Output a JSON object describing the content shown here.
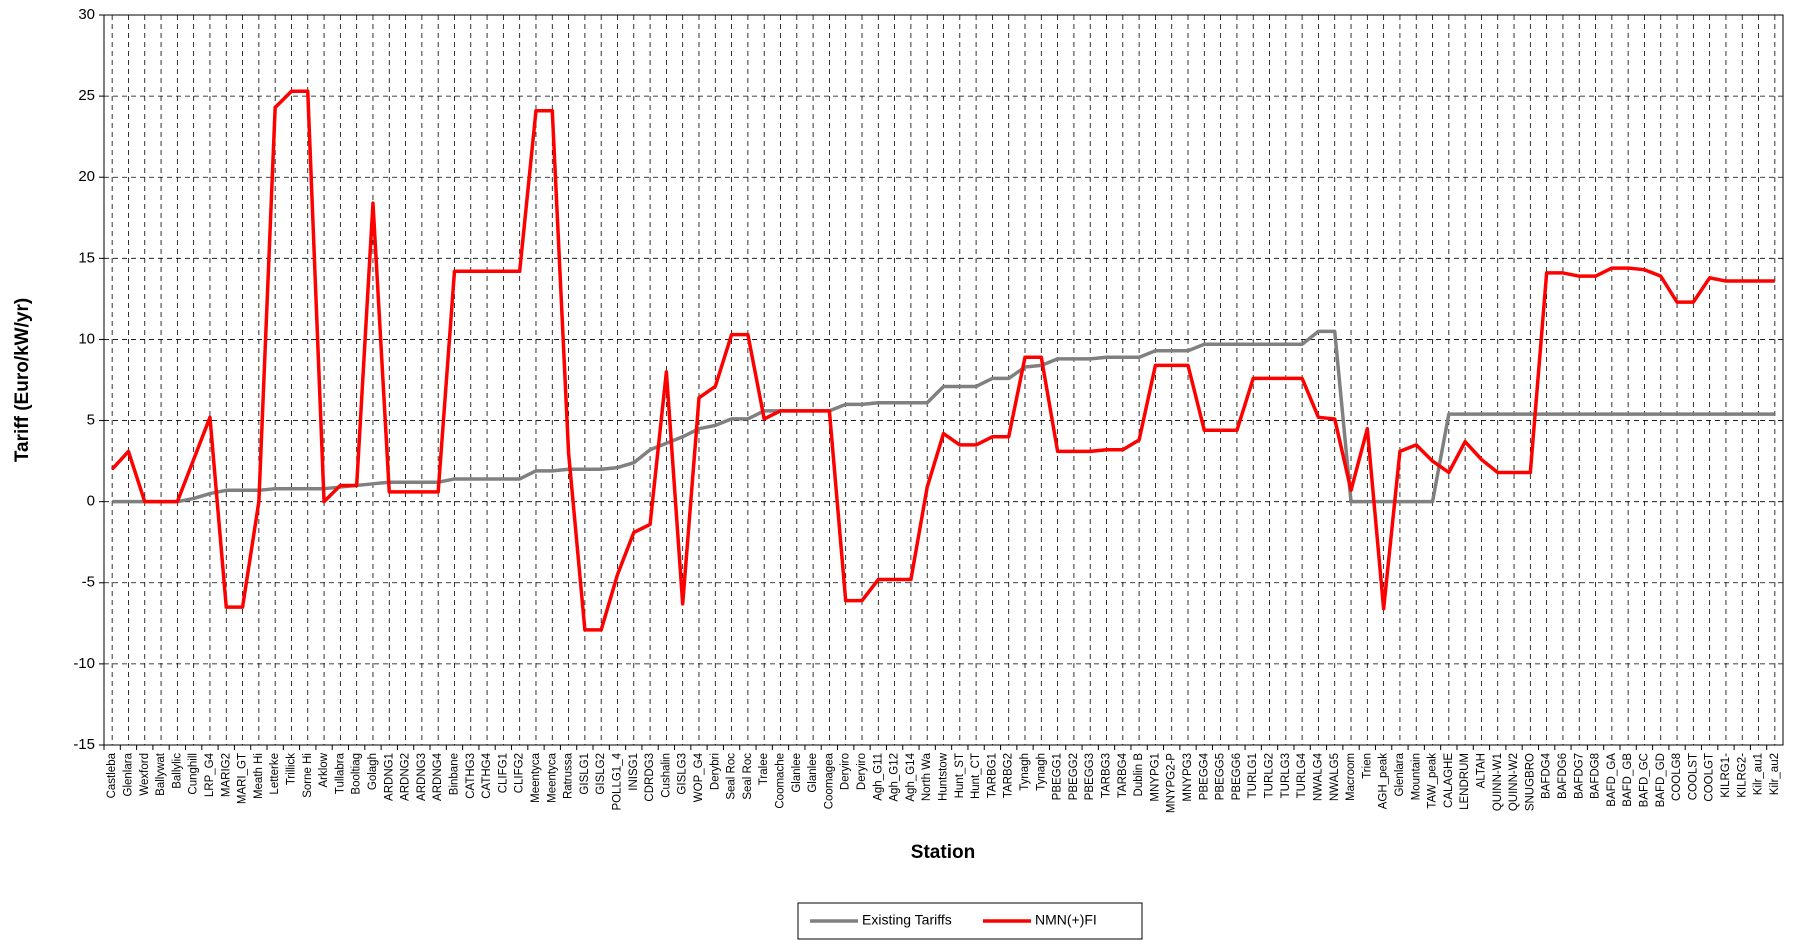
{
  "chart_data": {
    "type": "line",
    "x_label": "Station",
    "y_label": "Tariff (Euro/kW/yr)",
    "ylim": [
      -15,
      30
    ],
    "yticks": [
      -15,
      -10,
      -5,
      0,
      5,
      10,
      15,
      20,
      25,
      30
    ],
    "grid": true,
    "legend": "bottom",
    "categories": [
      "Castleba",
      "Glenlara",
      "Wexford",
      "Ballywat",
      "Ballylic",
      "Cunghill",
      "LRP_G4",
      "MARIG2",
      "MARI_GT",
      "Meath Hi",
      "Letterke",
      "Trillick",
      "Sorne Hi",
      "Arklow",
      "Tullabra",
      "Booltiag",
      "Golagh",
      "ARDNG1",
      "ARDNG2",
      "ARDNG3",
      "ARDNG4",
      "Binbane",
      "CATHG3",
      "CATHG4",
      "CLIFG1",
      "CLIFG2",
      "Meentyca",
      "Meentyca",
      "Ratrussa",
      "GISLG1",
      "GISLG2",
      "POLLG1_4",
      "INISG1",
      "CDRDG3",
      "Cushalin",
      "GISLG3",
      "WOP_G4",
      "Derybri",
      "Seal Roc",
      "Seal Roc",
      "Tralee",
      "Coomache",
      "Glanlee",
      "Glanlee",
      "Coomagea",
      "Deryiro",
      "Deryiro",
      "Agh_G11",
      "Agh_G12",
      "Agh_G14",
      "North Wa",
      "Huntstow",
      "Hunt_ST",
      "Hunt_CT",
      "TARBG1",
      "TARBG2",
      "Tynagh",
      "Tynagh",
      "PBEGG1",
      "PBEGG2",
      "PBEGG3",
      "TARBG3",
      "TARBG4",
      "Dublin B",
      "MNYPG1",
      "MNYPG2-P",
      "MNYPG3",
      "PBEGG4",
      "PBEGG5",
      "PBEGG6",
      "TURLG1",
      "TURLG2",
      "TURLG3",
      "TURLG4",
      "NWALG4",
      "NWALG5",
      "Macroom",
      "Trien",
      "AGH_peak",
      "Glenlara",
      "Mountain",
      "TAW_peak",
      "CALAGHE",
      "LENDRUM",
      "ALTAH",
      "QUINN-W1",
      "QUINN-W2",
      "SNUGBRO",
      "BAFDG4",
      "BAFDG6",
      "BAFDG7",
      "BAFDG8",
      "BAFD_GA",
      "BAFD_GB",
      "BAFD_GC",
      "BAFD_GD",
      "COOLG8",
      "COOLST",
      "COOLGT",
      "KILRG1-",
      "KILRG2-",
      "Kilr_au1",
      "Kilr_au2"
    ],
    "series": [
      {
        "name": "Existing Tariffs",
        "color": "#808080",
        "values": [
          0,
          0,
          0,
          0,
          0,
          0.2,
          0.5,
          0.7,
          0.7,
          0.7,
          0.8,
          0.8,
          0.8,
          0.8,
          0.9,
          1.0,
          1.1,
          1.2,
          1.2,
          1.2,
          1.2,
          1.4,
          1.4,
          1.4,
          1.4,
          1.4,
          1.9,
          1.9,
          2.0,
          2.0,
          2.0,
          2.1,
          2.4,
          3.2,
          3.6,
          4.0,
          4.5,
          4.7,
          5.1,
          5.1,
          5.6,
          5.6,
          5.6,
          5.6,
          5.6,
          6.0,
          6.0,
          6.1,
          6.1,
          6.1,
          6.1,
          7.1,
          7.1,
          7.1,
          7.6,
          7.6,
          8.3,
          8.4,
          8.8,
          8.8,
          8.8,
          8.9,
          8.9,
          8.9,
          9.3,
          9.3,
          9.3,
          9.7,
          9.7,
          9.7,
          9.7,
          9.7,
          9.7,
          9.7,
          10.5,
          10.5,
          0,
          0,
          0,
          0,
          0,
          0,
          5.4,
          5.4,
          5.4,
          5.4,
          5.4,
          5.4,
          5.4,
          5.4,
          5.4,
          5.4,
          5.4,
          5.4,
          5.4,
          5.4,
          5.4,
          5.4,
          5.4,
          5.4,
          5.4,
          5.4,
          5.4
        ]
      },
      {
        "name": "NMN(+)FI",
        "color": "#ff0000",
        "values": [
          2.0,
          3.1,
          0,
          0,
          0,
          2.6,
          5.2,
          -6.5,
          -6.5,
          0,
          24.3,
          25.3,
          25.3,
          0,
          1.0,
          1.0,
          18.4,
          0.6,
          0.6,
          0.6,
          0.6,
          14.2,
          14.2,
          14.2,
          14.2,
          14.2,
          24.1,
          24.1,
          3.0,
          -7.9,
          -7.9,
          -4.5,
          -1.9,
          -1.4,
          8.0,
          -6.3,
          6.4,
          7.1,
          10.3,
          10.3,
          5.1,
          5.6,
          5.6,
          5.6,
          5.6,
          -6.1,
          -6.1,
          -4.8,
          -4.8,
          -4.8,
          0.9,
          4.2,
          3.5,
          3.5,
          4.0,
          4.0,
          8.9,
          8.9,
          3.1,
          3.1,
          3.1,
          3.2,
          3.2,
          3.8,
          8.4,
          8.4,
          8.4,
          4.4,
          4.4,
          4.4,
          7.6,
          7.6,
          7.6,
          7.6,
          5.2,
          5.1,
          0.7,
          4.5,
          -6.6,
          3.1,
          3.5,
          2.5,
          1.8,
          3.7,
          2.6,
          1.8,
          1.8,
          1.8,
          14.1,
          14.1,
          13.9,
          13.9,
          14.4,
          14.4,
          14.3,
          13.9,
          12.3,
          12.3,
          13.8,
          13.6,
          13.6,
          13.6,
          13.6
        ]
      }
    ]
  }
}
